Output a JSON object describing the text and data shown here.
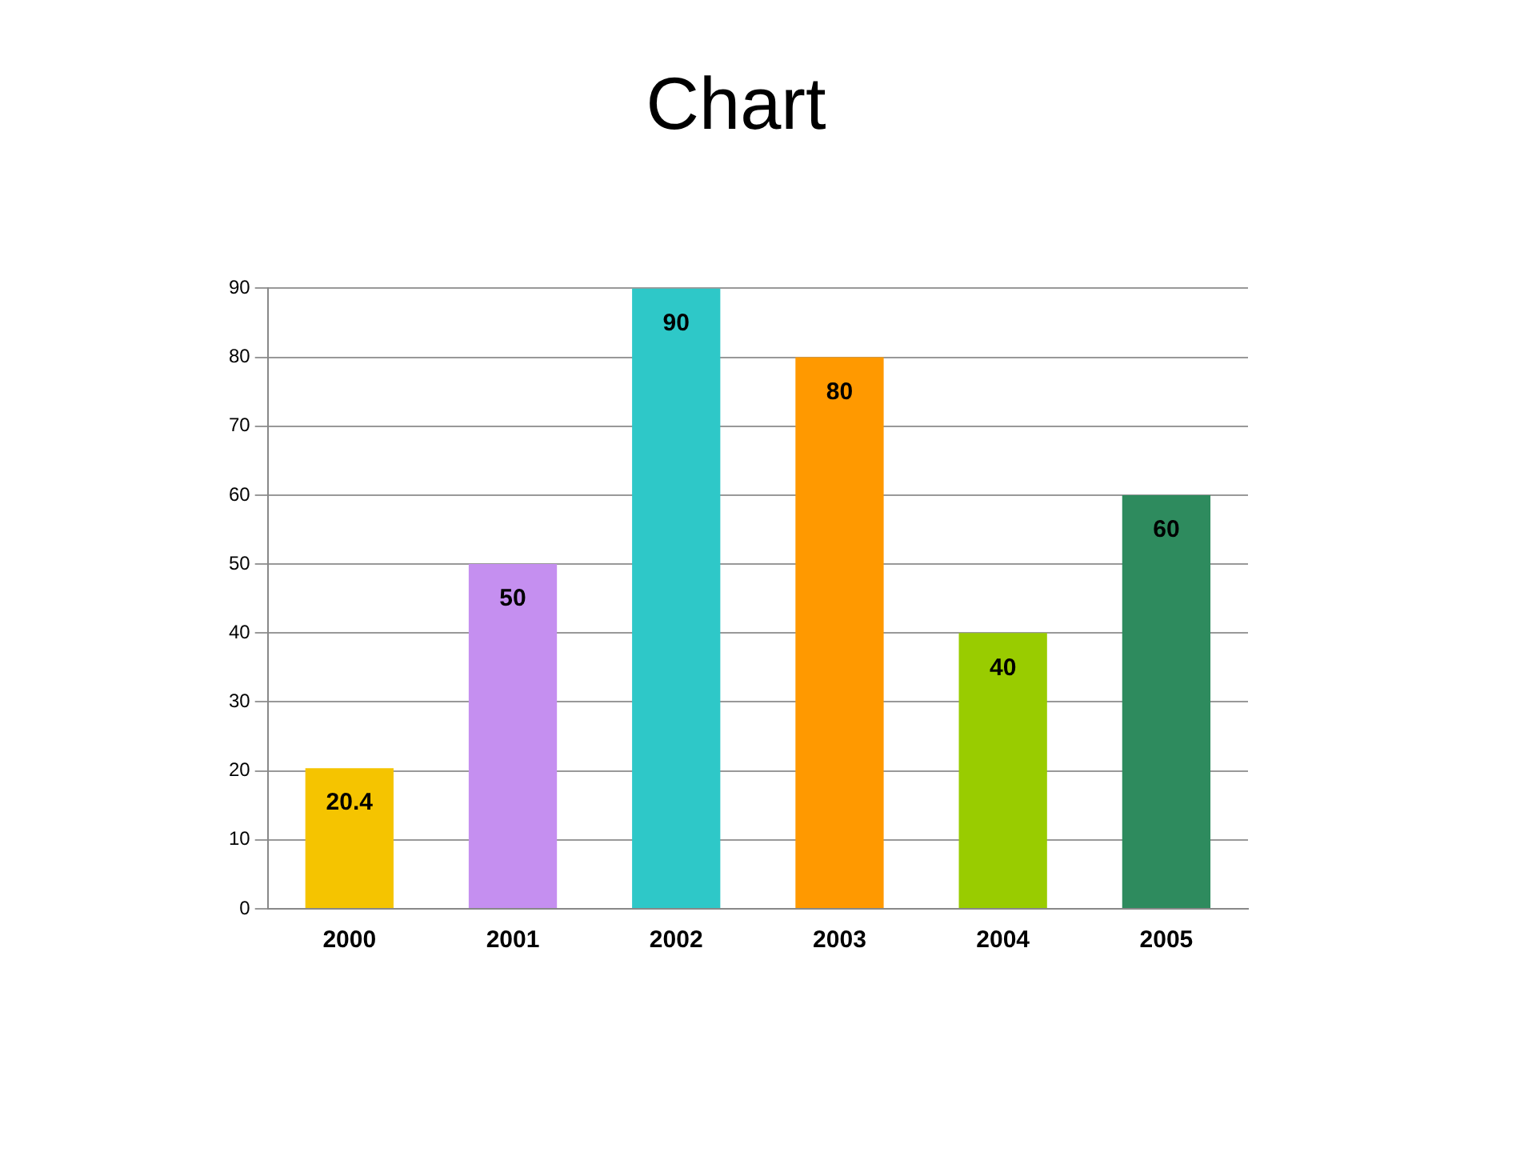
{
  "chart_data": {
    "type": "bar",
    "title": "Chart",
    "categories": [
      "2000",
      "2001",
      "2002",
      "2003",
      "2004",
      "2005"
    ],
    "values": [
      20.4,
      50,
      90,
      80,
      40,
      60
    ],
    "colors": [
      "#f5c400",
      "#c58ff0",
      "#2ec8c8",
      "#ff9900",
      "#99cc00",
      "#2e8b5e"
    ],
    "ylim": [
      0,
      90
    ],
    "yticks": [
      0,
      10,
      20,
      30,
      40,
      50,
      60,
      70,
      80,
      90
    ],
    "grid": "y",
    "data_labels": true,
    "legend": false
  }
}
